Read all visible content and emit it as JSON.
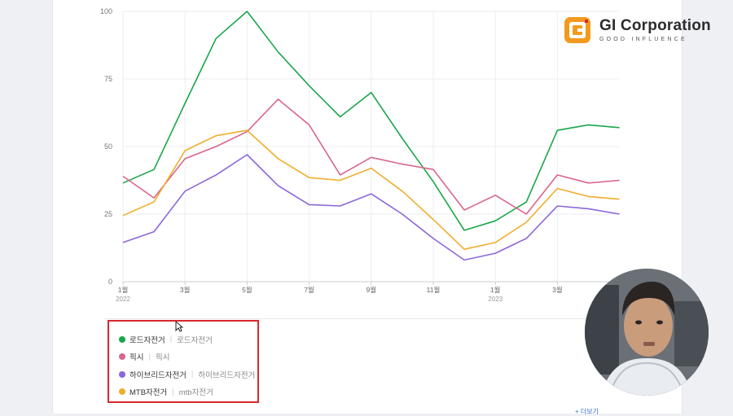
{
  "branding": {
    "company": "GI Corporation",
    "tagline": "GOOD INFLUENCE"
  },
  "chart_data": {
    "type": "line",
    "ylim": [
      0,
      100
    ],
    "yticks": [
      "0",
      "25",
      "50",
      "75",
      "100"
    ],
    "grid": true,
    "legend_placement": "bottom-left",
    "x": [
      "2022-01",
      "2022-02",
      "2022-03",
      "2022-04",
      "2022-05",
      "2022-06",
      "2022-07",
      "2022-08",
      "2022-09",
      "2022-10",
      "2022-11",
      "2022-12",
      "2023-01",
      "2023-02",
      "2023-03",
      "2023-04",
      "2023-05"
    ],
    "xtick_labels": [
      {
        "index": 0,
        "month": "1월",
        "year": "2022"
      },
      {
        "index": 2,
        "month": "3월",
        "year": ""
      },
      {
        "index": 4,
        "month": "5월",
        "year": ""
      },
      {
        "index": 6,
        "month": "7월",
        "year": ""
      },
      {
        "index": 8,
        "month": "9월",
        "year": ""
      },
      {
        "index": 10,
        "month": "11월",
        "year": ""
      },
      {
        "index": 12,
        "month": "1월",
        "year": "2023"
      },
      {
        "index": 14,
        "month": "3월",
        "year": ""
      }
    ],
    "series": [
      {
        "name": "로드자전거",
        "key": "로드자전거",
        "color": "#1aa64a",
        "values": [
          36.5,
          41.5,
          66,
          90,
          100,
          85,
          72.5,
          61,
          70,
          53,
          37,
          19,
          22.5,
          29.5,
          56,
          58,
          57
        ]
      },
      {
        "name": "픽시",
        "key": "픽시",
        "color": "#d9658b",
        "values": [
          39,
          31,
          45.5,
          50,
          55.5,
          67.5,
          58,
          39.5,
          46,
          43.5,
          41.5,
          26.5,
          32,
          25,
          39.5,
          36.5,
          37.5
        ]
      },
      {
        "name": "하이브리드자전거",
        "key": "하이브리드자전거",
        "color": "#8c66db",
        "values": [
          14.5,
          18.5,
          33.5,
          39.5,
          47,
          35.5,
          28.5,
          28,
          32.5,
          25,
          16,
          8,
          10.5,
          16,
          28,
          27,
          25
        ]
      },
      {
        "name": "MTB자전거",
        "key": "mtb자전거",
        "color": "#f0ae2c",
        "values": [
          24.5,
          29.5,
          48.5,
          54,
          56,
          45.5,
          38.5,
          37.5,
          42,
          33.5,
          23,
          12,
          14.5,
          22,
          34.5,
          31.5,
          30.5
        ]
      }
    ]
  },
  "footer_link": "+ 더보기"
}
